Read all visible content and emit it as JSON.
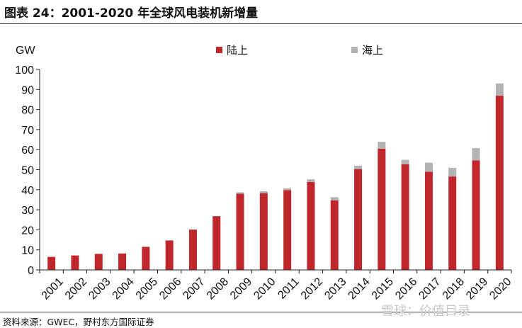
{
  "title": "图表 24：2001-2020 年全球风电装机新增量",
  "source": "资料来源：GWEC，野村东方国际证券",
  "watermark": "雪球：价值目录",
  "colors": {
    "onshore": "#c0272d",
    "offshore": "#b3b3b3"
  },
  "chart_data": {
    "type": "bar",
    "stacked": true,
    "title": "2001-2020 年全球风电装机新增量",
    "ylabel": "GW",
    "xlabel": "",
    "ylim": [
      0,
      100
    ],
    "yticks": [
      0,
      10,
      20,
      30,
      40,
      50,
      60,
      70,
      80,
      90,
      100
    ],
    "legend_position": "top",
    "categories": [
      "2001",
      "2002",
      "2003",
      "2004",
      "2005",
      "2006",
      "2007",
      "2008",
      "2009",
      "2010",
      "2011",
      "2012",
      "2013",
      "2014",
      "2015",
      "2016",
      "2017",
      "2018",
      "2019",
      "2020"
    ],
    "series": [
      {
        "name": "陆上",
        "color": "#c0272d",
        "values": [
          6.5,
          7.2,
          8.0,
          8.2,
          11.5,
          14.7,
          20.1,
          26.8,
          38.0,
          38.3,
          39.8,
          43.9,
          34.7,
          50.3,
          60.5,
          52.7,
          49.0,
          46.6,
          54.6,
          86.9
        ]
      },
      {
        "name": "海上",
        "color": "#b3b3b3",
        "values": [
          0.0,
          0.0,
          0.0,
          0.0,
          0.0,
          0.0,
          0.0,
          0.0,
          0.7,
          0.9,
          0.9,
          1.3,
          1.6,
          1.7,
          3.4,
          2.2,
          4.5,
          4.3,
          6.2,
          6.1
        ]
      }
    ]
  }
}
